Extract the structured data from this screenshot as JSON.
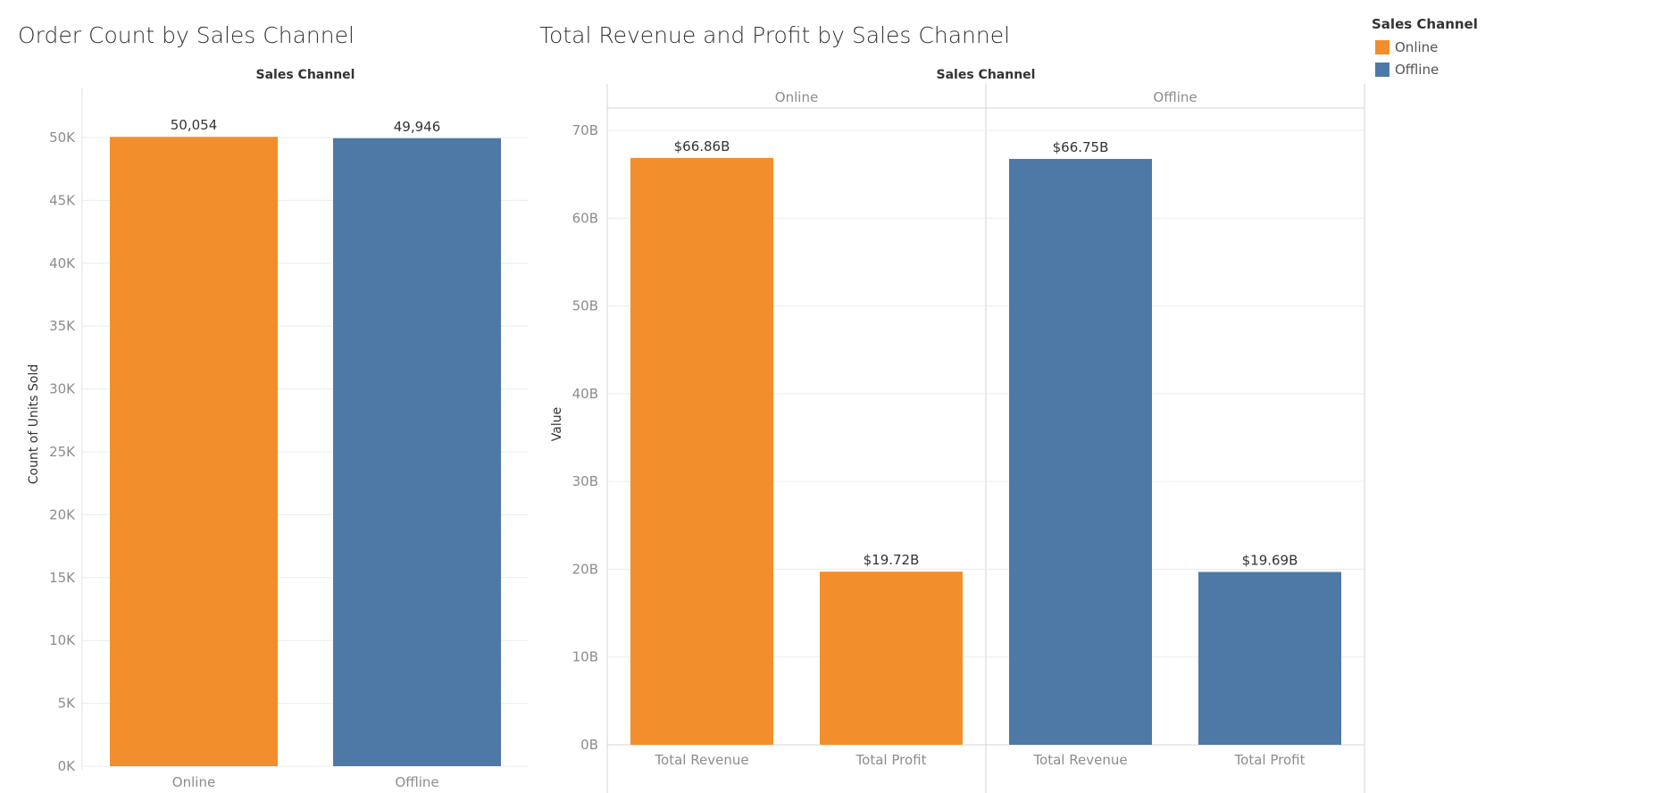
{
  "legend": {
    "title": "Sales Channel",
    "items": [
      {
        "label": "Online",
        "color": "#f28e2b"
      },
      {
        "label": "Offline",
        "color": "#4e79a7"
      }
    ]
  },
  "colors": {
    "Online": "#f28e2b",
    "Offline": "#4e79a7",
    "grid": "#ececec",
    "axis_text": "#8c8c8c",
    "label_text": "#333333"
  },
  "chart_data": [
    {
      "type": "bar",
      "title": "Order Count by Sales Channel",
      "column_header": "Sales Channel",
      "ylabel": "Count of Units Sold",
      "xlabel": "",
      "categories": [
        "Online",
        "Offline"
      ],
      "values": [
        50054,
        49946
      ],
      "data_labels": [
        "50,054",
        "49,946"
      ],
      "ylim": [
        0,
        50000
      ],
      "yticks": [
        0,
        5000,
        10000,
        15000,
        20000,
        25000,
        30000,
        35000,
        40000,
        45000,
        50000
      ],
      "ytick_labels": [
        "0K",
        "5K",
        "10K",
        "15K",
        "20K",
        "25K",
        "30K",
        "35K",
        "40K",
        "45K",
        "50K"
      ],
      "grid": true
    },
    {
      "type": "bar",
      "title": "Total Revenue and Profit by Sales Channel",
      "column_header": "Sales Channel",
      "ylabel": "Value",
      "xlabel": "",
      "panels": [
        "Online",
        "Offline"
      ],
      "categories": [
        "Total Revenue",
        "Total Profit"
      ],
      "series": [
        {
          "name": "Online",
          "values": [
            66.86,
            19.72
          ],
          "data_labels": [
            "$66.86B",
            "$19.72B"
          ]
        },
        {
          "name": "Offline",
          "values": [
            66.75,
            19.69
          ],
          "data_labels": [
            "$66.75B",
            "$19.69B"
          ]
        }
      ],
      "ylim": [
        0,
        70
      ],
      "yticks": [
        0,
        10,
        20,
        30,
        40,
        50,
        60,
        70
      ],
      "ytick_labels": [
        "0B",
        "10B",
        "20B",
        "30B",
        "40B",
        "50B",
        "60B",
        "70B"
      ],
      "grid": true
    }
  ]
}
